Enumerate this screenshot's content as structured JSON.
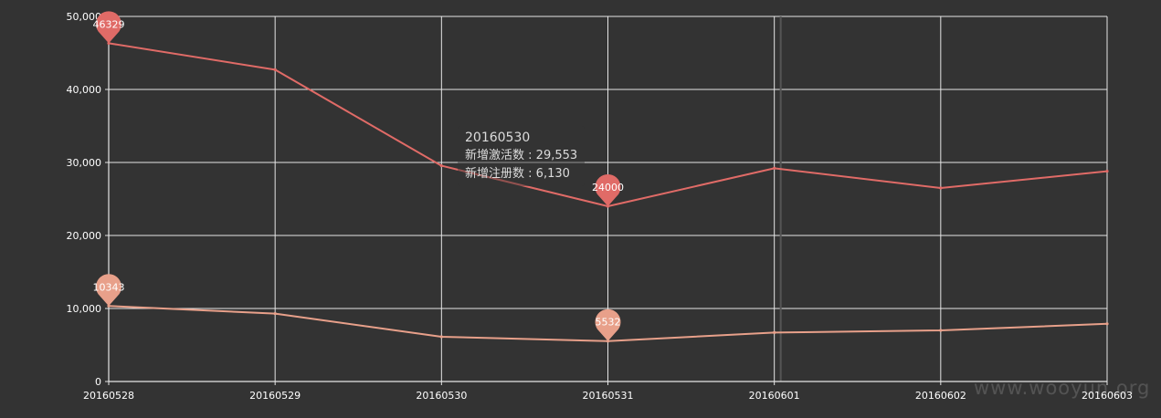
{
  "chart_data": {
    "type": "line",
    "categories": [
      "20160528",
      "20160529",
      "20160530",
      "20160531",
      "20160601",
      "20160602",
      "20160603"
    ],
    "series": [
      {
        "name": "新增激活数",
        "color": "#e06b67",
        "values": [
          46329,
          42700,
          29553,
          24000,
          29200,
          26500,
          28800
        ],
        "max_pin": {
          "category": "20160528",
          "value": "46329"
        },
        "min_pin": {
          "category": "20160531",
          "value": "24000"
        }
      },
      {
        "name": "新增注册数",
        "color": "#e8a08a",
        "values": [
          10343,
          9300,
          6130,
          5532,
          6700,
          7000,
          7900
        ],
        "max_pin": {
          "category": "20160528",
          "value": "10343"
        },
        "min_pin": {
          "category": "20160531",
          "value": "5532"
        }
      }
    ],
    "yticks": [
      "0",
      "10,000",
      "20,000",
      "30,000",
      "40,000",
      "50,000"
    ],
    "ylim": [
      0,
      50000
    ],
    "grid": true,
    "pointer_category": "20160601",
    "tooltip": {
      "title": "20160530",
      "rows": [
        {
          "label": "新增激活数",
          "value": "29,553"
        },
        {
          "label": "新增注册数",
          "value": "6,130"
        }
      ]
    }
  },
  "watermark": "www.wooyun.org"
}
